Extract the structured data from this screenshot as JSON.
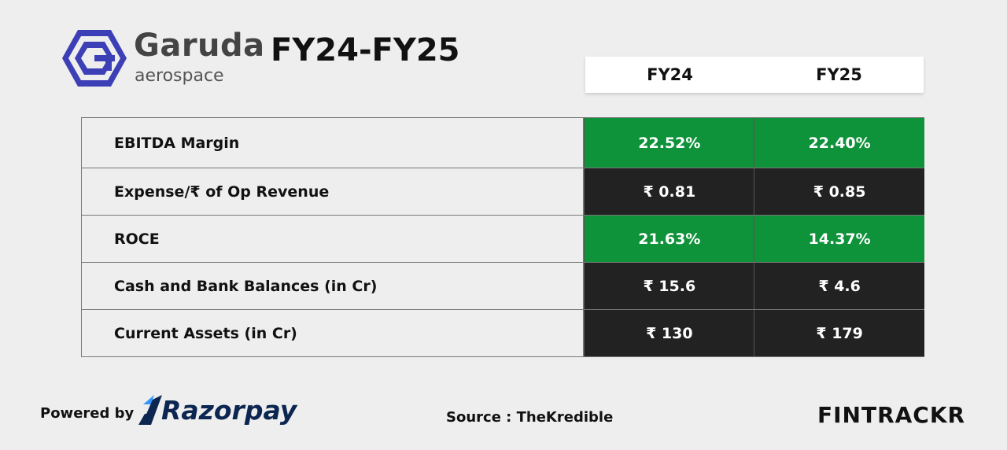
{
  "brand": {
    "name": "Garuda",
    "sub": "aerospace",
    "accent": "#3c3fb5"
  },
  "title": "FY24-FY25",
  "columns": [
    "FY24",
    "FY25"
  ],
  "rows": [
    {
      "label": "EBITDA Margin",
      "values": [
        "22.52%",
        "22.40%"
      ],
      "style": "green"
    },
    {
      "label": "Expense/₹ of Op Revenue",
      "values": [
        "₹ 0.81",
        "₹ 0.85"
      ],
      "style": "dark"
    },
    {
      "label": "ROCE",
      "values": [
        "21.63%",
        "14.37%"
      ],
      "style": "green"
    },
    {
      "label": "Cash and Bank Balances (in Cr)",
      "values": [
        "₹ 15.6",
        "₹ 4.6"
      ],
      "style": "dark"
    },
    {
      "label": "Current Assets (in Cr)",
      "values": [
        "₹ 130",
        "₹ 179"
      ],
      "style": "dark"
    }
  ],
  "footer": {
    "powered_by": "Powered by",
    "partner": "Razorpay",
    "source": "Source : TheKredible",
    "publisher": "FINTRACKR"
  },
  "colors": {
    "green": "#0e923a",
    "dark": "#222222",
    "background": "#eeeeee"
  }
}
